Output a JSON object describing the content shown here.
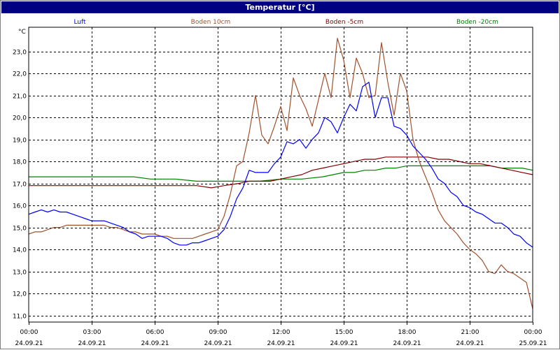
{
  "window": {
    "title": "Temperatur [°C]"
  },
  "chart_data": {
    "type": "line",
    "title": "Temperatur [°C]",
    "ylabel": "°C",
    "xlabel": "",
    "ylim": [
      10.7,
      24.1
    ],
    "xlim": [
      0,
      24
    ],
    "grid": true,
    "legend_position": "top",
    "x_ticks": [
      {
        "x": 0,
        "time": "00:00",
        "date": "24.09.21"
      },
      {
        "x": 3,
        "time": "03:00",
        "date": "24.09.21"
      },
      {
        "x": 6,
        "time": "06:00",
        "date": "24.09.21"
      },
      {
        "x": 9,
        "time": "09:00",
        "date": "24.09.21"
      },
      {
        "x": 12,
        "time": "12:00",
        "date": "24.09.21"
      },
      {
        "x": 15,
        "time": "15:00",
        "date": "24.09.21"
      },
      {
        "x": 18,
        "time": "18:00",
        "date": "24.09.21"
      },
      {
        "x": 21,
        "time": "21:00",
        "date": "24.09.21"
      },
      {
        "x": 24,
        "time": "00:00",
        "date": "25.09.21"
      }
    ],
    "y_ticks": [
      {
        "v": 11,
        "label": "11,0"
      },
      {
        "v": 12,
        "label": "12,0"
      },
      {
        "v": 13,
        "label": "13,0"
      },
      {
        "v": 14,
        "label": "14,0"
      },
      {
        "v": 15,
        "label": "15,0"
      },
      {
        "v": 16,
        "label": "16,0"
      },
      {
        "v": 17,
        "label": "17,0"
      },
      {
        "v": 18,
        "label": "18,0"
      },
      {
        "v": 19,
        "label": "19,0"
      },
      {
        "v": 20,
        "label": "20,0"
      },
      {
        "v": 21,
        "label": "21,0"
      },
      {
        "v": 22,
        "label": "22,0"
      },
      {
        "v": 23,
        "label": "23,0"
      }
    ],
    "series": [
      {
        "name": "Luft",
        "color": "#0000ff",
        "points": [
          [
            0,
            15.6
          ],
          [
            0.3,
            15.7
          ],
          [
            0.6,
            15.8
          ],
          [
            0.9,
            15.7
          ],
          [
            1.2,
            15.8
          ],
          [
            1.5,
            15.7
          ],
          [
            1.8,
            15.7
          ],
          [
            2.1,
            15.6
          ],
          [
            2.4,
            15.5
          ],
          [
            2.7,
            15.4
          ],
          [
            3.0,
            15.3
          ],
          [
            3.3,
            15.3
          ],
          [
            3.6,
            15.3
          ],
          [
            3.9,
            15.2
          ],
          [
            4.2,
            15.1
          ],
          [
            4.5,
            15.0
          ],
          [
            4.8,
            14.8
          ],
          [
            5.1,
            14.7
          ],
          [
            5.4,
            14.5
          ],
          [
            5.7,
            14.6
          ],
          [
            6.0,
            14.6
          ],
          [
            6.3,
            14.6
          ],
          [
            6.6,
            14.5
          ],
          [
            6.9,
            14.3
          ],
          [
            7.2,
            14.2
          ],
          [
            7.5,
            14.2
          ],
          [
            7.8,
            14.3
          ],
          [
            8.1,
            14.3
          ],
          [
            8.4,
            14.4
          ],
          [
            8.7,
            14.5
          ],
          [
            9.0,
            14.6
          ],
          [
            9.3,
            14.9
          ],
          [
            9.6,
            15.5
          ],
          [
            9.9,
            16.3
          ],
          [
            10.2,
            16.8
          ],
          [
            10.5,
            17.6
          ],
          [
            10.8,
            17.5
          ],
          [
            11.1,
            17.5
          ],
          [
            11.4,
            17.5
          ],
          [
            11.7,
            17.9
          ],
          [
            12.0,
            18.2
          ],
          [
            12.3,
            18.9
          ],
          [
            12.6,
            18.8
          ],
          [
            12.9,
            19.0
          ],
          [
            13.2,
            18.6
          ],
          [
            13.5,
            19.0
          ],
          [
            13.8,
            19.3
          ],
          [
            14.1,
            20.0
          ],
          [
            14.4,
            19.8
          ],
          [
            14.7,
            19.3
          ],
          [
            15.0,
            20.0
          ],
          [
            15.3,
            20.6
          ],
          [
            15.6,
            20.3
          ],
          [
            15.9,
            21.4
          ],
          [
            16.2,
            21.6
          ],
          [
            16.5,
            20.0
          ],
          [
            16.8,
            20.9
          ],
          [
            17.1,
            20.9
          ],
          [
            17.4,
            19.6
          ],
          [
            17.7,
            19.5
          ],
          [
            18.0,
            19.2
          ],
          [
            18.3,
            18.7
          ],
          [
            18.6,
            18.4
          ],
          [
            18.9,
            18.1
          ],
          [
            19.2,
            17.7
          ],
          [
            19.5,
            17.2
          ],
          [
            19.8,
            17.0
          ],
          [
            20.1,
            16.6
          ],
          [
            20.4,
            16.4
          ],
          [
            20.7,
            16.0
          ],
          [
            21.0,
            15.9
          ],
          [
            21.3,
            15.7
          ],
          [
            21.6,
            15.6
          ],
          [
            21.9,
            15.4
          ],
          [
            22.2,
            15.2
          ],
          [
            22.5,
            15.2
          ],
          [
            22.8,
            15.0
          ],
          [
            23.1,
            14.7
          ],
          [
            23.4,
            14.6
          ],
          [
            23.7,
            14.3
          ],
          [
            24.0,
            14.1
          ]
        ]
      },
      {
        "name": "Boden 10cm",
        "color": "#a0522d",
        "points": [
          [
            0,
            14.7
          ],
          [
            0.3,
            14.8
          ],
          [
            0.6,
            14.8
          ],
          [
            0.9,
            14.9
          ],
          [
            1.2,
            15.0
          ],
          [
            1.5,
            15.0
          ],
          [
            1.8,
            15.1
          ],
          [
            2.1,
            15.1
          ],
          [
            2.4,
            15.1
          ],
          [
            2.7,
            15.1
          ],
          [
            3.0,
            15.1
          ],
          [
            3.3,
            15.1
          ],
          [
            3.6,
            15.1
          ],
          [
            3.9,
            15.0
          ],
          [
            4.2,
            15.0
          ],
          [
            4.5,
            14.9
          ],
          [
            4.8,
            14.8
          ],
          [
            5.1,
            14.8
          ],
          [
            5.4,
            14.7
          ],
          [
            5.7,
            14.7
          ],
          [
            6.0,
            14.7
          ],
          [
            6.3,
            14.6
          ],
          [
            6.6,
            14.6
          ],
          [
            6.9,
            14.5
          ],
          [
            7.2,
            14.5
          ],
          [
            7.5,
            14.5
          ],
          [
            7.8,
            14.5
          ],
          [
            8.1,
            14.6
          ],
          [
            8.4,
            14.7
          ],
          [
            8.7,
            14.8
          ],
          [
            9.0,
            14.9
          ],
          [
            9.3,
            15.5
          ],
          [
            9.6,
            16.5
          ],
          [
            9.9,
            17.8
          ],
          [
            10.2,
            18.0
          ],
          [
            10.5,
            19.3
          ],
          [
            10.8,
            21.0
          ],
          [
            11.1,
            19.2
          ],
          [
            11.4,
            18.8
          ],
          [
            11.7,
            19.6
          ],
          [
            12.0,
            20.5
          ],
          [
            12.3,
            19.4
          ],
          [
            12.6,
            21.8
          ],
          [
            12.9,
            21.0
          ],
          [
            13.2,
            20.4
          ],
          [
            13.5,
            19.6
          ],
          [
            13.8,
            20.8
          ],
          [
            14.1,
            22.0
          ],
          [
            14.4,
            20.9
          ],
          [
            14.7,
            23.6
          ],
          [
            15.0,
            22.6
          ],
          [
            15.3,
            20.9
          ],
          [
            15.6,
            22.7
          ],
          [
            15.9,
            22.0
          ],
          [
            16.2,
            20.9
          ],
          [
            16.5,
            21.0
          ],
          [
            16.8,
            23.4
          ],
          [
            17.1,
            21.6
          ],
          [
            17.4,
            20.1
          ],
          [
            17.7,
            22.0
          ],
          [
            18.0,
            21.2
          ],
          [
            18.3,
            19.0
          ],
          [
            18.6,
            18.0
          ],
          [
            18.9,
            17.3
          ],
          [
            19.2,
            16.6
          ],
          [
            19.5,
            15.8
          ],
          [
            19.8,
            15.3
          ],
          [
            20.1,
            15.0
          ],
          [
            20.4,
            14.7
          ],
          [
            20.7,
            14.3
          ],
          [
            21.0,
            14.0
          ],
          [
            21.3,
            13.8
          ],
          [
            21.6,
            13.5
          ],
          [
            21.9,
            13.0
          ],
          [
            22.2,
            12.9
          ],
          [
            22.5,
            13.3
          ],
          [
            22.8,
            13.0
          ],
          [
            23.1,
            12.9
          ],
          [
            23.4,
            12.7
          ],
          [
            23.7,
            12.5
          ],
          [
            24.0,
            11.3
          ]
        ]
      },
      {
        "name": "Boden -5cm",
        "color": "#800000",
        "points": [
          [
            0,
            16.9
          ],
          [
            1,
            16.9
          ],
          [
            2,
            16.9
          ],
          [
            3,
            16.9
          ],
          [
            4,
            16.9
          ],
          [
            5,
            16.9
          ],
          [
            6,
            16.9
          ],
          [
            7,
            16.9
          ],
          [
            8,
            16.9
          ],
          [
            8.7,
            16.8
          ],
          [
            9.3,
            16.9
          ],
          [
            10,
            17.0
          ],
          [
            10.5,
            17.1
          ],
          [
            11,
            17.1
          ],
          [
            11.5,
            17.1
          ],
          [
            12,
            17.2
          ],
          [
            12.5,
            17.3
          ],
          [
            13,
            17.4
          ],
          [
            13.5,
            17.6
          ],
          [
            14,
            17.7
          ],
          [
            14.5,
            17.8
          ],
          [
            15,
            17.9
          ],
          [
            15.5,
            18.0
          ],
          [
            16,
            18.1
          ],
          [
            16.5,
            18.1
          ],
          [
            17,
            18.2
          ],
          [
            17.5,
            18.2
          ],
          [
            18,
            18.2
          ],
          [
            18.5,
            18.2
          ],
          [
            19,
            18.2
          ],
          [
            19.5,
            18.1
          ],
          [
            20,
            18.1
          ],
          [
            20.5,
            18.0
          ],
          [
            21,
            17.9
          ],
          [
            21.5,
            17.9
          ],
          [
            22,
            17.8
          ],
          [
            22.5,
            17.7
          ],
          [
            23,
            17.6
          ],
          [
            23.5,
            17.5
          ],
          [
            24,
            17.4
          ]
        ]
      },
      {
        "name": "Boden -20cm",
        "color": "#008000",
        "points": [
          [
            0,
            17.3
          ],
          [
            1,
            17.3
          ],
          [
            2,
            17.3
          ],
          [
            3,
            17.3
          ],
          [
            4,
            17.3
          ],
          [
            5,
            17.3
          ],
          [
            5.8,
            17.2
          ],
          [
            7,
            17.2
          ],
          [
            8,
            17.1
          ],
          [
            9,
            17.1
          ],
          [
            10,
            17.1
          ],
          [
            11,
            17.1
          ],
          [
            12,
            17.2
          ],
          [
            13,
            17.2
          ],
          [
            14,
            17.3
          ],
          [
            14.5,
            17.4
          ],
          [
            15,
            17.5
          ],
          [
            15.5,
            17.5
          ],
          [
            16,
            17.6
          ],
          [
            16.5,
            17.6
          ],
          [
            17,
            17.7
          ],
          [
            17.5,
            17.7
          ],
          [
            18,
            17.8
          ],
          [
            18.5,
            17.8
          ],
          [
            19,
            17.8
          ],
          [
            19.5,
            17.8
          ],
          [
            20,
            17.8
          ],
          [
            20.5,
            17.8
          ],
          [
            21,
            17.8
          ],
          [
            21.5,
            17.8
          ],
          [
            22,
            17.8
          ],
          [
            22.5,
            17.7
          ],
          [
            23,
            17.7
          ],
          [
            23.5,
            17.7
          ],
          [
            24,
            17.6
          ]
        ]
      }
    ]
  }
}
